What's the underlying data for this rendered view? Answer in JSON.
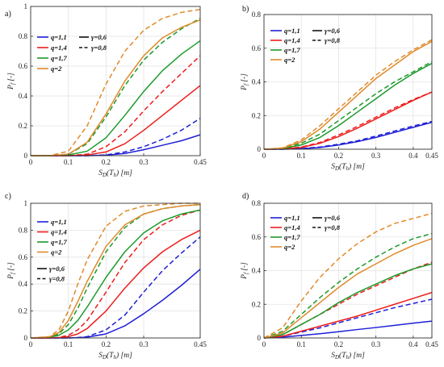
{
  "colors": {
    "q1.1": "#1f1fd6",
    "q1.4": "#ee1c1c",
    "q1.7": "#1b9a2b",
    "q2": "#e08a2a",
    "grid": "#e3e3e3",
    "axis": "#333333"
  },
  "chart_data": [
    {
      "type": "line",
      "panel_label": "a)",
      "xlabel": "S_D(T_h) [m]",
      "ylabel": "P_f [-]",
      "xlim": [
        0,
        0.45
      ],
      "ylim": [
        0,
        1
      ],
      "xticks": [
        "0",
        "0.1",
        "0.2",
        "0.3",
        "0.45"
      ],
      "yticks": [
        "0",
        "0.2",
        "0.4",
        "0.6",
        "0.8",
        "1"
      ],
      "grid": true,
      "legend_placement": "top-left",
      "legend": {
        "q": [
          "q=1,1",
          "q=1,4",
          "q=1,7",
          "q=2"
        ],
        "gamma": [
          "γ=0,6",
          "γ=0,8"
        ]
      },
      "x": [
        0,
        0.05,
        0.1,
        0.15,
        0.2,
        0.25,
        0.3,
        0.35,
        0.4,
        0.45
      ],
      "series": [
        {
          "name": "q=1,1 γ=0,6",
          "color_key": "q1.1",
          "dash": false,
          "values": [
            0,
            0,
            0,
            0,
            0.003,
            0.015,
            0.04,
            0.07,
            0.1,
            0.14
          ]
        },
        {
          "name": "q=1,1 γ=0,8",
          "color_key": "q1.1",
          "dash": true,
          "values": [
            0,
            0,
            0,
            0,
            0.005,
            0.025,
            0.06,
            0.11,
            0.17,
            0.25
          ]
        },
        {
          "name": "q=1,4 γ=0,6",
          "color_key": "q1.4",
          "dash": false,
          "values": [
            0,
            0,
            0,
            0.005,
            0.025,
            0.08,
            0.17,
            0.27,
            0.37,
            0.47
          ]
        },
        {
          "name": "q=1,4 γ=0,8",
          "color_key": "q1.4",
          "dash": true,
          "values": [
            0,
            0,
            0,
            0.01,
            0.06,
            0.16,
            0.3,
            0.43,
            0.55,
            0.67
          ]
        },
        {
          "name": "q=1,7 γ=0,6",
          "color_key": "q1.7",
          "dash": false,
          "values": [
            0,
            0,
            0.005,
            0.03,
            0.12,
            0.27,
            0.43,
            0.57,
            0.68,
            0.77
          ]
        },
        {
          "name": "q=1,7 γ=0,8",
          "color_key": "q1.7",
          "dash": true,
          "values": [
            0,
            0,
            0.01,
            0.08,
            0.26,
            0.47,
            0.64,
            0.76,
            0.85,
            0.92
          ]
        },
        {
          "name": "q=2 γ=0,6",
          "color_key": "q2",
          "dash": false,
          "values": [
            0,
            0,
            0.01,
            0.09,
            0.28,
            0.5,
            0.67,
            0.79,
            0.86,
            0.91
          ]
        },
        {
          "name": "q=2 γ=0,8",
          "color_key": "q2",
          "dash": true,
          "values": [
            0,
            0,
            0.03,
            0.2,
            0.48,
            0.7,
            0.84,
            0.92,
            0.96,
            0.98
          ]
        }
      ]
    },
    {
      "type": "line",
      "panel_label": "b)",
      "xlabel": "S_D(T_h) [m]",
      "ylabel": "P_f [-]",
      "xlim": [
        0,
        0.45
      ],
      "ylim": [
        0,
        0.8
      ],
      "xticks": [
        "0",
        "0.1",
        "0.2",
        "0.3",
        "0.4",
        "0.45"
      ],
      "yticks": [
        "0",
        "0.2",
        "0.4",
        "0.6",
        "0.8"
      ],
      "grid": true,
      "legend_placement": "top-left",
      "legend": {
        "q": [
          "q=1,1",
          "q=1,4",
          "q=1,7",
          "q=2"
        ],
        "gamma": [
          "γ=0,6",
          "γ=0,8"
        ]
      },
      "x": [
        0,
        0.05,
        0.1,
        0.15,
        0.2,
        0.25,
        0.3,
        0.35,
        0.4,
        0.45
      ],
      "series": [
        {
          "name": "q=1,1 γ=0,6",
          "color_key": "q1.1",
          "dash": false,
          "values": [
            0,
            0,
            0.003,
            0.01,
            0.025,
            0.045,
            0.07,
            0.1,
            0.13,
            0.16
          ]
        },
        {
          "name": "q=1,1 γ=0,8",
          "color_key": "q1.1",
          "dash": true,
          "values": [
            0,
            0,
            0.004,
            0.013,
            0.03,
            0.05,
            0.078,
            0.108,
            0.138,
            0.165
          ]
        },
        {
          "name": "q=1,4 γ=0,6",
          "color_key": "q1.4",
          "dash": false,
          "values": [
            0,
            0.002,
            0.01,
            0.035,
            0.075,
            0.125,
            0.18,
            0.235,
            0.29,
            0.34
          ]
        },
        {
          "name": "q=1,4 γ=0,8",
          "color_key": "q1.4",
          "dash": true,
          "values": [
            0,
            0.002,
            0.013,
            0.04,
            0.085,
            0.135,
            0.19,
            0.245,
            0.295,
            0.34
          ]
        },
        {
          "name": "q=1,7 γ=0,6",
          "color_key": "q1.7",
          "dash": false,
          "values": [
            0,
            0.004,
            0.025,
            0.07,
            0.14,
            0.22,
            0.3,
            0.38,
            0.45,
            0.51
          ]
        },
        {
          "name": "q=1,7 γ=0,8",
          "color_key": "q1.7",
          "dash": true,
          "values": [
            0,
            0.005,
            0.035,
            0.09,
            0.17,
            0.25,
            0.33,
            0.4,
            0.46,
            0.52
          ]
        },
        {
          "name": "q=2 γ=0,6",
          "color_key": "q2",
          "dash": false,
          "values": [
            0,
            0.006,
            0.045,
            0.12,
            0.22,
            0.32,
            0.42,
            0.5,
            0.58,
            0.64
          ]
        },
        {
          "name": "q=2 γ=0,8",
          "color_key": "q2",
          "dash": true,
          "values": [
            0,
            0.008,
            0.055,
            0.14,
            0.24,
            0.34,
            0.44,
            0.52,
            0.59,
            0.65
          ]
        }
      ]
    },
    {
      "type": "line",
      "panel_label": "c)",
      "xlabel": "S_D(T_h) [m]",
      "ylabel": "P_f [-]",
      "xlim": [
        0,
        0.45
      ],
      "ylim": [
        0,
        1
      ],
      "xticks": [
        "0",
        "0.1",
        "0.2",
        "0.3",
        "0.45"
      ],
      "yticks": [
        "0",
        "0.2",
        "0.4",
        "0.6",
        "0.8",
        "1"
      ],
      "grid": true,
      "legend_placement": "top-left",
      "legend": {
        "q": [
          "q=1,1",
          "q=1,4",
          "q=1,7",
          "q=2"
        ],
        "gamma": [
          "γ=0,6",
          "γ=0,8"
        ]
      },
      "x": [
        0,
        0.05,
        0.075,
        0.1,
        0.125,
        0.15,
        0.2,
        0.25,
        0.3,
        0.35,
        0.4,
        0.45
      ],
      "series": [
        {
          "name": "q=1,1 γ=0,6",
          "color_key": "q1.1",
          "dash": false,
          "values": [
            0,
            0,
            0,
            0,
            0.002,
            0.006,
            0.03,
            0.09,
            0.18,
            0.28,
            0.39,
            0.51
          ]
        },
        {
          "name": "q=1,1 γ=0,8",
          "color_key": "q1.1",
          "dash": true,
          "values": [
            0,
            0,
            0,
            0,
            0.003,
            0.01,
            0.06,
            0.17,
            0.34,
            0.5,
            0.63,
            0.75
          ]
        },
        {
          "name": "q=1,4 γ=0,6",
          "color_key": "q1.4",
          "dash": false,
          "values": [
            0,
            0,
            0.002,
            0.01,
            0.03,
            0.07,
            0.2,
            0.37,
            0.52,
            0.64,
            0.73,
            0.8
          ]
        },
        {
          "name": "q=1,4 γ=0,8",
          "color_key": "q1.4",
          "dash": true,
          "values": [
            0,
            0,
            0.004,
            0.02,
            0.06,
            0.13,
            0.34,
            0.56,
            0.73,
            0.84,
            0.91,
            0.95
          ]
        },
        {
          "name": "q=1,7 γ=0,6",
          "color_key": "q1.7",
          "dash": false,
          "values": [
            0,
            0.005,
            0.02,
            0.06,
            0.13,
            0.23,
            0.45,
            0.64,
            0.78,
            0.87,
            0.92,
            0.95
          ]
        },
        {
          "name": "q=1,7 γ=0,8",
          "color_key": "q1.7",
          "dash": true,
          "values": [
            0,
            0.005,
            0.03,
            0.1,
            0.22,
            0.37,
            0.64,
            0.82,
            0.92,
            0.96,
            0.98,
            0.99
          ]
        },
        {
          "name": "q=2 γ=0,6",
          "color_key": "q2",
          "dash": false,
          "values": [
            0,
            0.008,
            0.04,
            0.13,
            0.27,
            0.42,
            0.68,
            0.84,
            0.92,
            0.96,
            0.98,
            0.99
          ]
        },
        {
          "name": "q=2 γ=0,8",
          "color_key": "q2",
          "dash": true,
          "values": [
            0,
            0.01,
            0.06,
            0.2,
            0.4,
            0.58,
            0.83,
            0.94,
            0.98,
            0.99,
            1.0,
            1.0
          ]
        }
      ]
    },
    {
      "type": "line",
      "panel_label": "d)",
      "xlabel": "S_D(T_h) [m]",
      "ylabel": "P_f [-]",
      "xlim": [
        0,
        0.45
      ],
      "ylim": [
        0,
        0.8
      ],
      "xticks": [
        "0",
        "0.1",
        "0.2",
        "0.3",
        "0.4",
        "0.45"
      ],
      "yticks": [
        "0",
        "0.2",
        "0.4",
        "0.6",
        "0.8"
      ],
      "grid": true,
      "legend_placement": "top-left",
      "legend": {
        "q": [
          "q=1,1",
          "q=1,4",
          "q=1,7",
          "q=2"
        ],
        "gamma": [
          "γ=0,6",
          "γ=0,8"
        ]
      },
      "x": [
        0,
        0.05,
        0.1,
        0.15,
        0.2,
        0.25,
        0.3,
        0.35,
        0.4,
        0.45
      ],
      "series": [
        {
          "name": "q=1,1 γ=0,6",
          "color_key": "q1.1",
          "dash": false,
          "values": [
            0,
            0.005,
            0.015,
            0.025,
            0.037,
            0.05,
            0.062,
            0.075,
            0.088,
            0.1
          ]
        },
        {
          "name": "q=1,1 γ=0,8",
          "color_key": "q1.1",
          "dash": true,
          "values": [
            0,
            0.01,
            0.035,
            0.06,
            0.09,
            0.12,
            0.15,
            0.18,
            0.205,
            0.23
          ]
        },
        {
          "name": "q=1,4 γ=0,6",
          "color_key": "q1.4",
          "dash": false,
          "values": [
            0,
            0.01,
            0.04,
            0.07,
            0.1,
            0.13,
            0.165,
            0.2,
            0.235,
            0.27
          ]
        },
        {
          "name": "q=1,4 γ=0,8",
          "color_key": "q1.4",
          "dash": true,
          "values": [
            0,
            0.02,
            0.08,
            0.14,
            0.2,
            0.26,
            0.31,
            0.36,
            0.41,
            0.45
          ]
        },
        {
          "name": "q=1,7 γ=0,6",
          "color_key": "q1.7",
          "dash": false,
          "values": [
            0,
            0.02,
            0.08,
            0.14,
            0.21,
            0.27,
            0.32,
            0.37,
            0.41,
            0.44
          ]
        },
        {
          "name": "q=1,7 γ=0,8",
          "color_key": "q1.7",
          "dash": true,
          "values": [
            0,
            0.04,
            0.14,
            0.24,
            0.33,
            0.41,
            0.48,
            0.54,
            0.59,
            0.62
          ]
        },
        {
          "name": "q=2 γ=0,6",
          "color_key": "q2",
          "dash": false,
          "values": [
            0,
            0.03,
            0.12,
            0.21,
            0.3,
            0.38,
            0.44,
            0.5,
            0.55,
            0.59
          ]
        },
        {
          "name": "q=2 γ=0,8",
          "color_key": "q2",
          "dash": true,
          "values": [
            0,
            0.06,
            0.22,
            0.36,
            0.47,
            0.56,
            0.63,
            0.68,
            0.71,
            0.74
          ]
        }
      ]
    }
  ]
}
